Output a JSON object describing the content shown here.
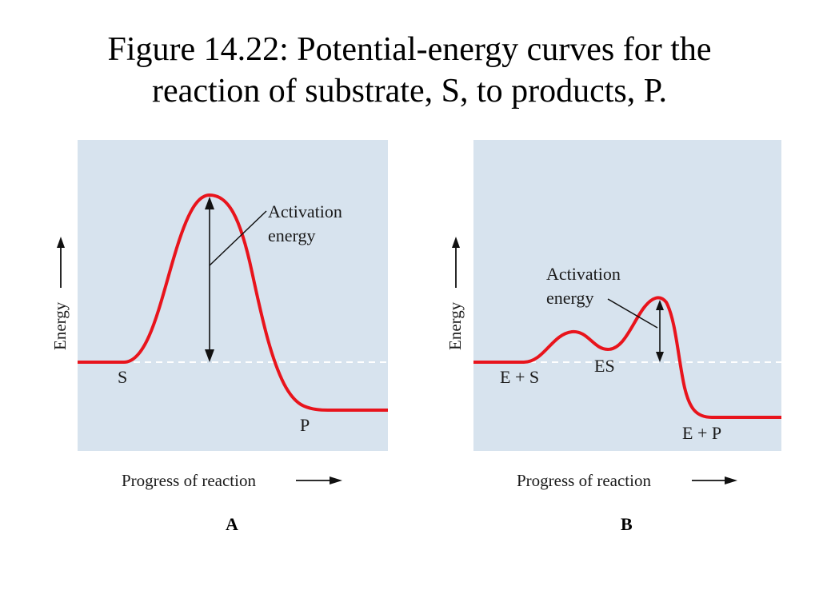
{
  "title": {
    "line1": "Figure 14.22: Potential-energy curves for the",
    "line2": "reaction of substrate, S, to products, P."
  },
  "colors": {
    "panel_bg": "#d7e3ee",
    "curve": "#e8141c",
    "baseline": "#ffffff",
    "text": "#1a1a1a"
  },
  "panel_a": {
    "letter": "A",
    "y_axis_label": "Energy",
    "x_axis_label": "Progress of reaction",
    "annotation_line1": "Activation",
    "annotation_line2": "energy",
    "start_label": "S",
    "end_label": "P"
  },
  "panel_b": {
    "letter": "B",
    "y_axis_label": "Energy",
    "x_axis_label": "Progress of reaction",
    "annotation_line1": "Activation",
    "annotation_line2": "energy",
    "start_label": "E + S",
    "intermediate_label": "ES",
    "end_label": "E + P"
  }
}
